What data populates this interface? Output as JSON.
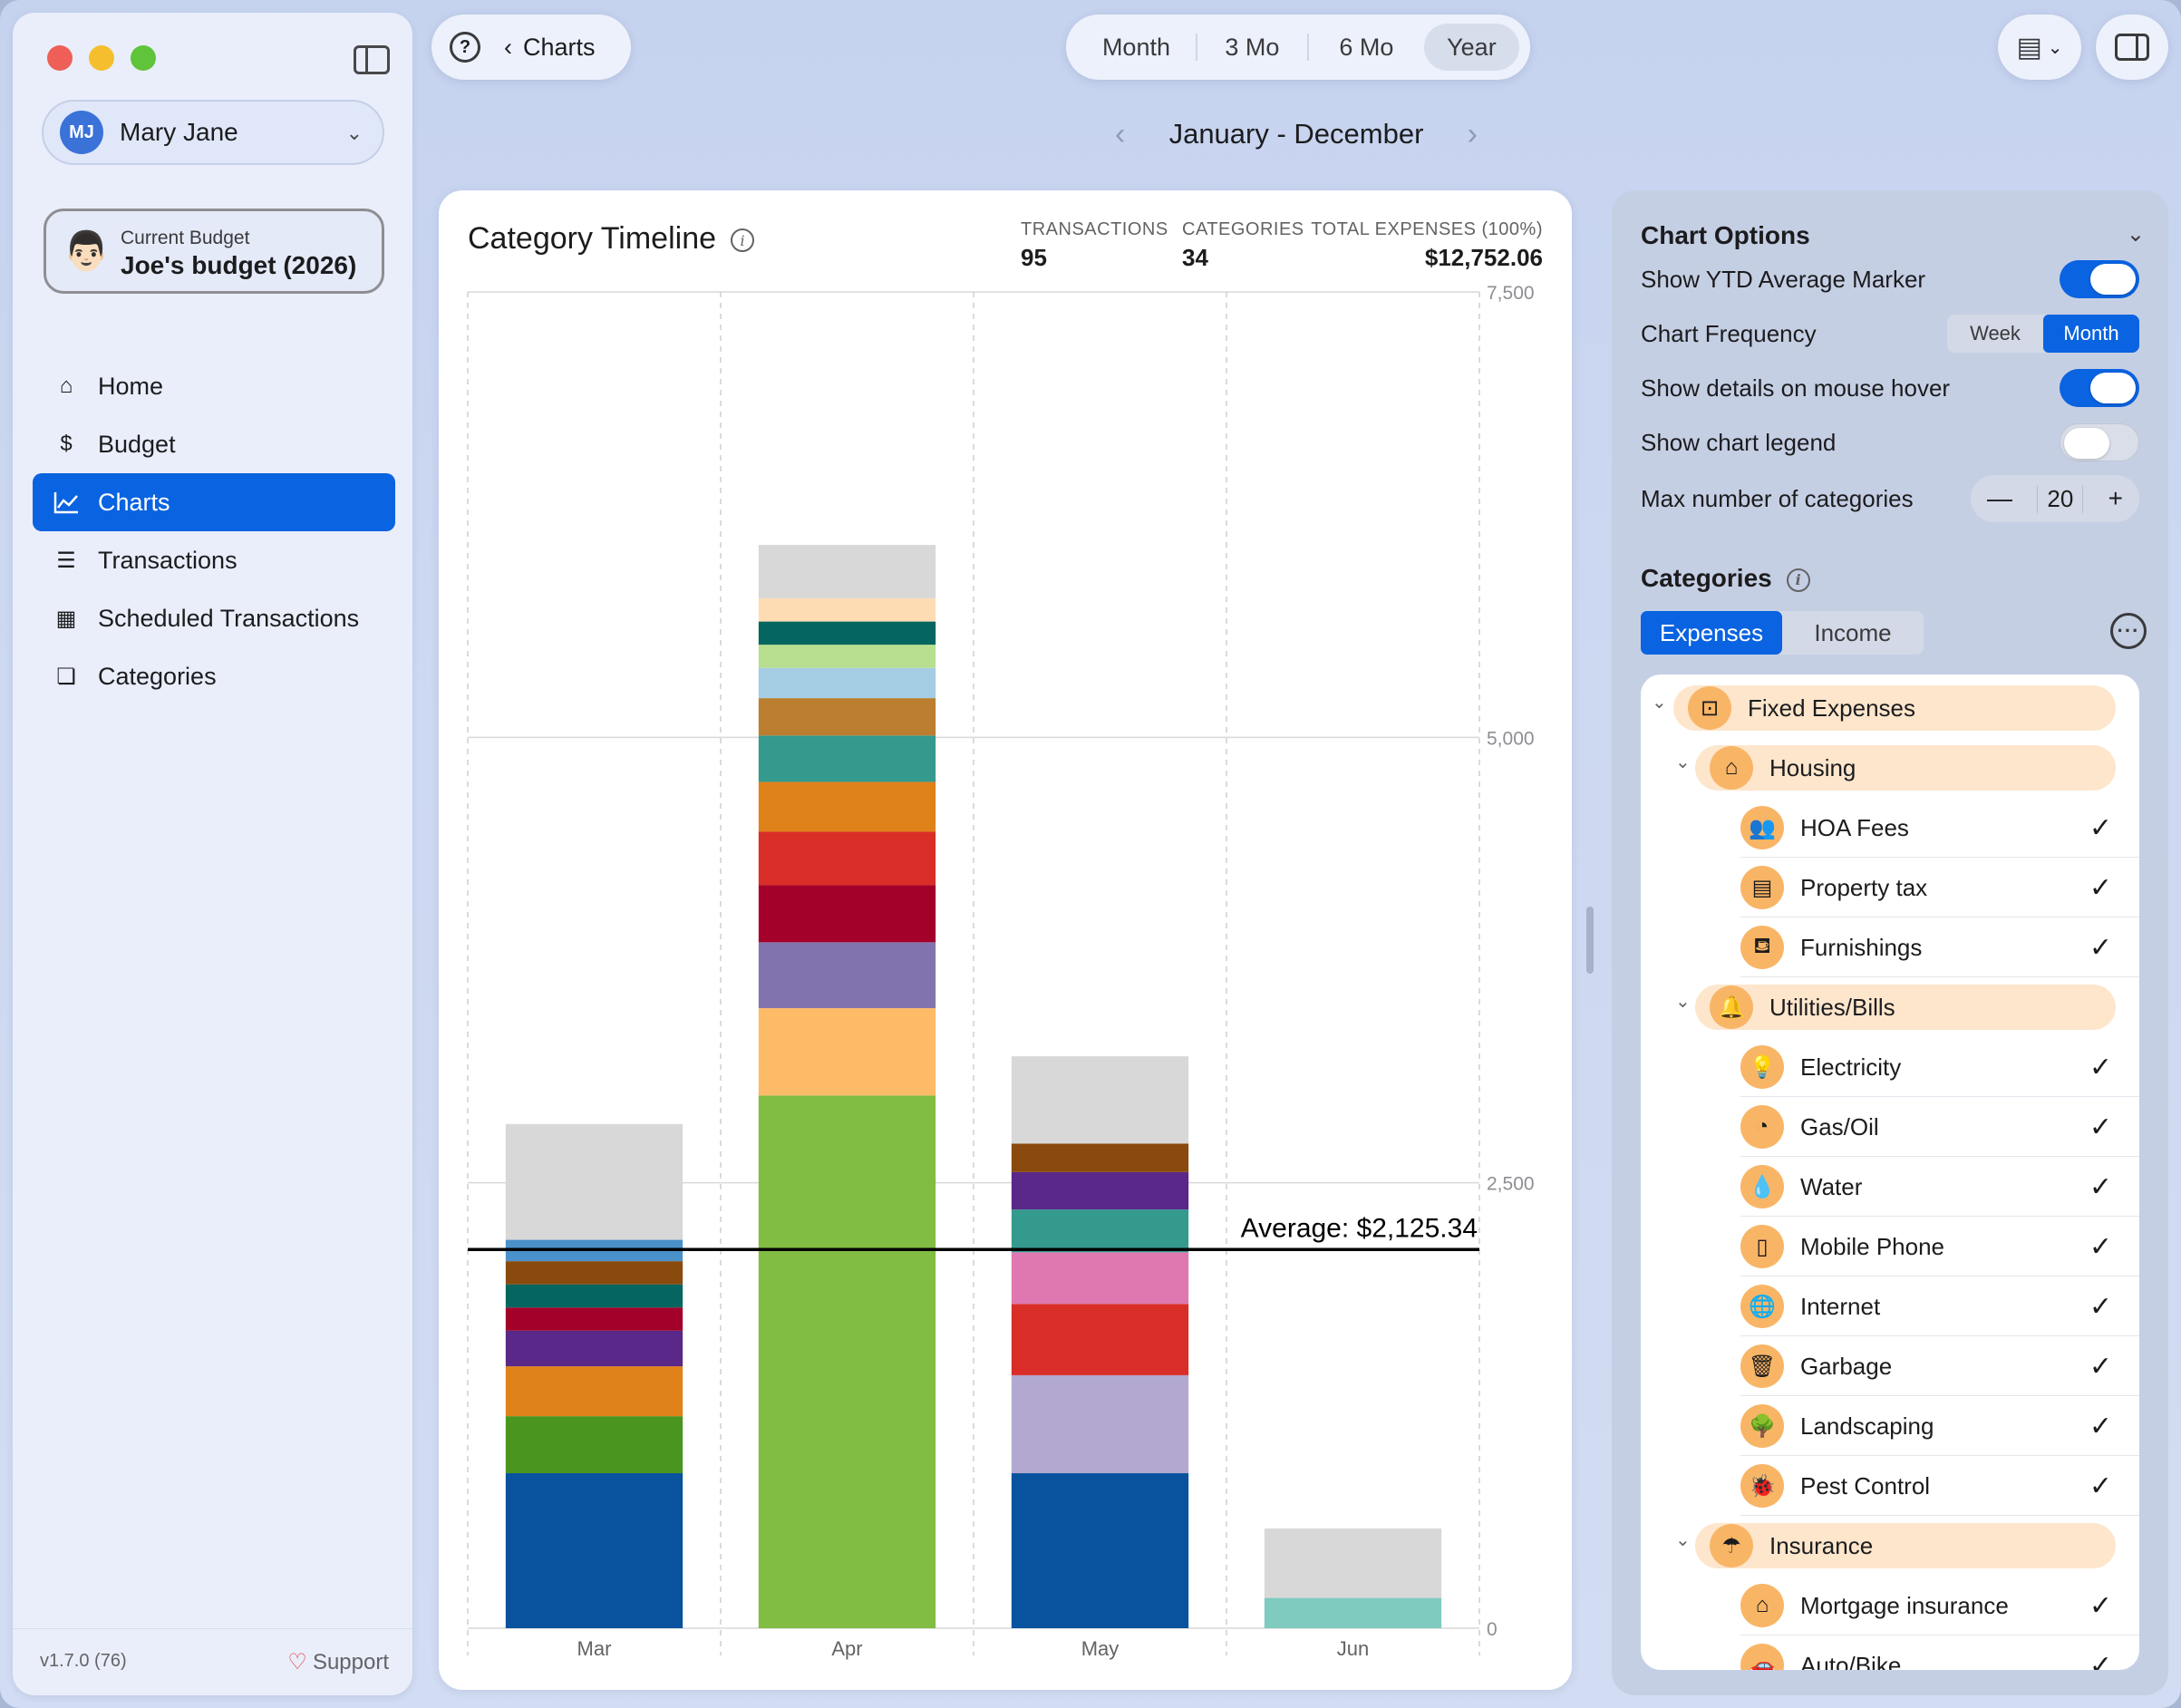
{
  "sidebar": {
    "user": {
      "initials": "MJ",
      "name": "Mary Jane"
    },
    "budget": {
      "caption": "Current Budget",
      "name": "Joe's budget (2026)",
      "emoji": "👨🏻"
    },
    "nav": [
      {
        "label": "Home",
        "icon": "house-icon",
        "glyph": "⌂"
      },
      {
        "label": "Budget",
        "icon": "dollar-icon",
        "glyph": "$"
      },
      {
        "label": "Charts",
        "icon": "chart-line-icon",
        "glyph": ""
      },
      {
        "label": "Transactions",
        "icon": "list-icon",
        "glyph": "☰"
      },
      {
        "label": "Scheduled Transactions",
        "icon": "calendar-icon",
        "glyph": "▦"
      },
      {
        "label": "Categories",
        "icon": "categories-icon",
        "glyph": "❏"
      }
    ],
    "active_nav": "Charts",
    "version": "v1.7.0 (76)",
    "support_label": "Support"
  },
  "toolbar": {
    "back_label": "Charts",
    "periods": [
      "Month",
      "3 Mo",
      "6 Mo",
      "Year"
    ],
    "selected_period": "Year",
    "date_range": "January - December"
  },
  "chart_card": {
    "title": "Category Timeline",
    "stats": [
      {
        "label": "TRANSACTIONS",
        "value": "95"
      },
      {
        "label": "CATEGORIES",
        "value": "34"
      },
      {
        "label": "TOTAL EXPENSES (100%)",
        "value": "$12,752.06"
      }
    ]
  },
  "chart_data": {
    "type": "bar",
    "stacked": true,
    "categories": [
      "Mar",
      "Apr",
      "May",
      "Jun"
    ],
    "ylim": [
      0,
      7500
    ],
    "yticks": [
      "0",
      "2,500",
      "5,000",
      "7,500"
    ],
    "ytick_values": [
      0,
      2500,
      5000,
      7500
    ],
    "average": {
      "label": "Average: $2,125.34",
      "value": 2125.34
    },
    "grid": true,
    "legend": false,
    "stacks": [
      [
        {
          "value": 870,
          "color": "#08529e"
        },
        {
          "value": 320,
          "color": "#4a9420"
        },
        {
          "value": 280,
          "color": "#e0821a"
        },
        {
          "value": 200,
          "color": "#592889"
        },
        {
          "value": 130,
          "color": "#a3002a"
        },
        {
          "value": 130,
          "color": "#04665f"
        },
        {
          "value": 130,
          "color": "#8a4a0d"
        },
        {
          "value": 120,
          "color": "#4a90c9"
        },
        {
          "value": 650,
          "color": "#d8d8d8"
        }
      ],
      [
        {
          "value": 2990,
          "color": "#80bd42"
        },
        {
          "value": 490,
          "color": "#fdbb67"
        },
        {
          "value": 370,
          "color": "#8174ae"
        },
        {
          "value": 320,
          "color": "#a3002a"
        },
        {
          "value": 300,
          "color": "#d92e28"
        },
        {
          "value": 280,
          "color": "#e0821a"
        },
        {
          "value": 260,
          "color": "#359a8e"
        },
        {
          "value": 210,
          "color": "#bc7e2f"
        },
        {
          "value": 170,
          "color": "#a4cde3"
        },
        {
          "value": 130,
          "color": "#b8df8f"
        },
        {
          "value": 130,
          "color": "#04665f"
        },
        {
          "value": 130,
          "color": "#fddcb4"
        },
        {
          "value": 300,
          "color": "#d8d8d8"
        }
      ],
      [
        {
          "value": 870,
          "color": "#08529e"
        },
        {
          "value": 550,
          "color": "#b3a9d0"
        },
        {
          "value": 400,
          "color": "#d92e28"
        },
        {
          "value": 290,
          "color": "#df78b1"
        },
        {
          "value": 240,
          "color": "#359a8e"
        },
        {
          "value": 210,
          "color": "#592889"
        },
        {
          "value": 160,
          "color": "#8a4a0d"
        },
        {
          "value": 490,
          "color": "#d8d8d8"
        }
      ],
      [
        {
          "value": 170,
          "color": "#7fcbbf"
        },
        {
          "value": 390,
          "color": "#d8d8d8"
        }
      ]
    ]
  },
  "options": {
    "title": "Chart Options",
    "show_ytd_label": "Show YTD Average Marker",
    "show_ytd": true,
    "frequency_label": "Chart Frequency",
    "frequency_options": [
      "Week",
      "Month"
    ],
    "frequency_selected": "Month",
    "hover_label": "Show details on mouse hover",
    "hover": true,
    "legend_label": "Show chart legend",
    "legend": false,
    "max_label": "Max number of categories",
    "max_value": "20",
    "minus": "—",
    "plus": "+"
  },
  "categories_panel": {
    "title": "Categories",
    "tabs": [
      "Expenses",
      "Income"
    ],
    "selected_tab": "Expenses",
    "rows": [
      {
        "level": 0,
        "label": "Fixed Expenses",
        "icon": "pin-icon",
        "glyph": "⊡",
        "group": true
      },
      {
        "level": 1,
        "label": "Housing",
        "icon": "house-icon",
        "glyph": "⌂",
        "group": true
      },
      {
        "level": 2,
        "label": "HOA Fees",
        "icon": "people-icon",
        "glyph": "👥",
        "checked": true
      },
      {
        "level": 2,
        "label": "Property tax",
        "icon": "clipboard-icon",
        "glyph": "▤",
        "checked": true
      },
      {
        "level": 2,
        "label": "Furnishings",
        "icon": "sofa-icon",
        "glyph": "⛾",
        "checked": true
      },
      {
        "level": 1,
        "label": "Utilities/Bills",
        "icon": "bell-icon",
        "glyph": "🔔",
        "group": true
      },
      {
        "level": 2,
        "label": "Electricity",
        "icon": "lightbulb-icon",
        "glyph": "💡",
        "checked": true
      },
      {
        "level": 2,
        "label": "Gas/Oil",
        "icon": "gauge-icon",
        "glyph": "◔",
        "checked": true
      },
      {
        "level": 2,
        "label": "Water",
        "icon": "drop-icon",
        "glyph": "💧",
        "checked": true
      },
      {
        "level": 2,
        "label": "Mobile Phone",
        "icon": "phone-icon",
        "glyph": "▯",
        "checked": true
      },
      {
        "level": 2,
        "label": "Internet",
        "icon": "globe-icon",
        "glyph": "🌐",
        "checked": true
      },
      {
        "level": 2,
        "label": "Garbage",
        "icon": "trash-icon",
        "glyph": "🗑",
        "checked": true
      },
      {
        "level": 2,
        "label": "Landscaping",
        "icon": "tree-icon",
        "glyph": "🌳",
        "checked": true
      },
      {
        "level": 2,
        "label": "Pest Control",
        "icon": "bug-icon",
        "glyph": "🐞",
        "checked": true
      },
      {
        "level": 1,
        "label": "Insurance",
        "icon": "umbrella-icon",
        "glyph": "☂",
        "group": true
      },
      {
        "level": 2,
        "label": "Mortgage insurance",
        "icon": "house-shield-icon",
        "glyph": "⌂",
        "checked": true
      },
      {
        "level": 2,
        "label": "Auto/Bike",
        "icon": "car-icon",
        "glyph": "🚗",
        "checked": true
      }
    ],
    "check_glyph": "✓",
    "chevron_glyph": "⌄"
  }
}
